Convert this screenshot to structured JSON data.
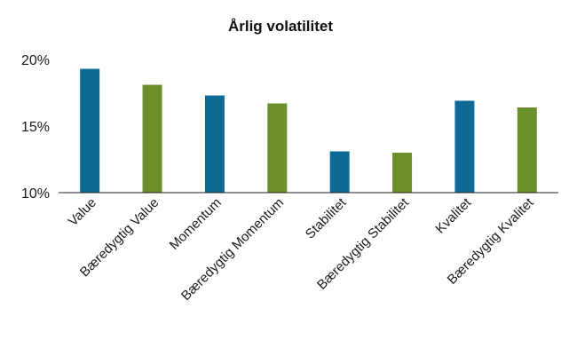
{
  "chart_data": {
    "type": "bar",
    "title": "Årlig volatilitet",
    "xlabel": "",
    "ylabel": "",
    "categories": [
      "Value",
      "Bæredygtig Value",
      "Momentum",
      "Bæredygtig Momentum",
      "Stabilitet",
      "Bæredygtig Stabilitet",
      "Kvalitet",
      "Bæredygtig Kvalitet"
    ],
    "values": [
      19.3,
      18.1,
      17.3,
      16.7,
      13.1,
      13.0,
      16.9,
      16.4
    ],
    "bar_colors": [
      "#0f6b96",
      "#6b8f2a",
      "#0f6b96",
      "#6b8f2a",
      "#0f6b96",
      "#6b8f2a",
      "#0f6b96",
      "#6b8f2a"
    ],
    "ylim": [
      10,
      20
    ],
    "yticks": [
      10,
      15,
      20
    ],
    "ytick_labels": [
      "10%",
      "15%",
      "20%"
    ],
    "grid": false,
    "legend": "none"
  }
}
